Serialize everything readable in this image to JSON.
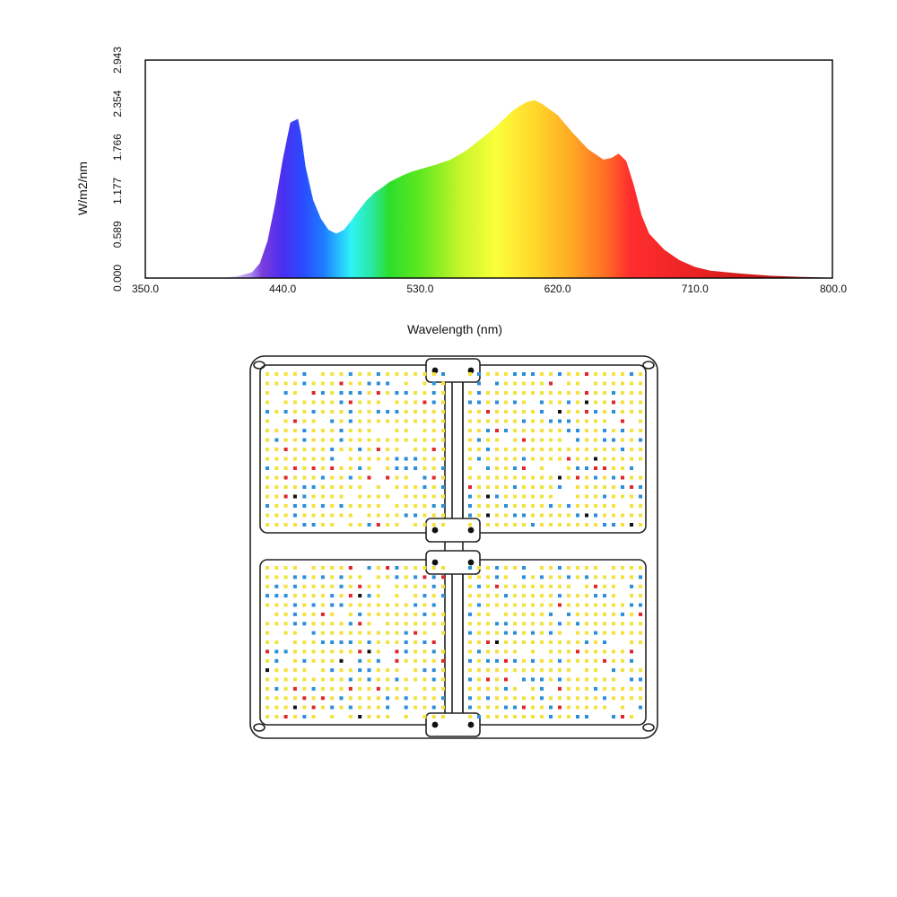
{
  "chart_data": {
    "type": "area",
    "title": "",
    "xlabel": "Wavelength (nm)",
    "ylabel": "W/m2/nm",
    "xlim": [
      350,
      800
    ],
    "ylim": [
      0,
      2.943
    ],
    "x_ticks": [
      "350.0",
      "440.0",
      "530.0",
      "620.0",
      "710.0",
      "800.0"
    ],
    "y_ticks": [
      "0.000",
      "0.589",
      "1.177",
      "1.766",
      "2.354",
      "2.943"
    ],
    "grid": false,
    "legend": "none",
    "fill": "visible-spectrum-gradient",
    "series": [
      {
        "x": [
          350,
          380,
          400,
          410,
          420,
          425,
          430,
          435,
          440,
          445,
          450,
          452,
          455,
          460,
          465,
          470,
          475,
          480,
          485,
          490,
          495,
          500,
          505,
          510,
          515,
          520,
          525,
          530,
          540,
          550,
          560,
          570,
          580,
          590,
          595,
          600,
          605,
          610,
          620,
          630,
          640,
          650,
          655,
          660,
          665,
          670,
          675,
          680,
          690,
          700,
          710,
          720,
          740,
          760,
          780,
          800
        ],
        "y": [
          0.0,
          0.0,
          0.005,
          0.02,
          0.08,
          0.2,
          0.5,
          1.0,
          1.6,
          2.1,
          2.15,
          1.95,
          1.5,
          1.05,
          0.8,
          0.65,
          0.6,
          0.65,
          0.78,
          0.92,
          1.05,
          1.15,
          1.22,
          1.3,
          1.35,
          1.4,
          1.44,
          1.47,
          1.53,
          1.6,
          1.72,
          1.88,
          2.05,
          2.25,
          2.32,
          2.38,
          2.4,
          2.35,
          2.2,
          1.96,
          1.74,
          1.6,
          1.62,
          1.68,
          1.58,
          1.25,
          0.85,
          0.6,
          0.38,
          0.24,
          0.15,
          0.1,
          0.06,
          0.03,
          0.015,
          0.005
        ]
      }
    ]
  },
  "illustration": {
    "subject": "led-grow-light-board"
  }
}
